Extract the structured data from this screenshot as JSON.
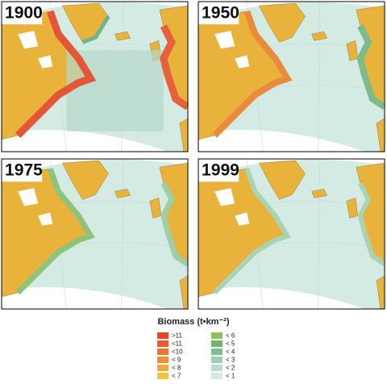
{
  "panels": [
    {
      "label": "1900"
    },
    {
      "label": "1950"
    },
    {
      "label": "1975"
    },
    {
      "label": "1999"
    }
  ],
  "legend": {
    "title": "Biomass (t•km⁻²)",
    "items": [
      {
        "label": ">11",
        "color": "#e8432c"
      },
      {
        "label": "<11",
        "color": "#ea5a30"
      },
      {
        "label": "<10",
        "color": "#ec7434"
      },
      {
        "label": "< 9",
        "color": "#ee8f38"
      },
      {
        "label": "< 8",
        "color": "#f0a93c"
      },
      {
        "label": "< 7",
        "color": "#f2c240"
      },
      {
        "label": "< 6",
        "color": "#8fbf5a"
      },
      {
        "label": "< 5",
        "color": "#72b46e"
      },
      {
        "label": "< 4",
        "color": "#7dbf92"
      },
      {
        "label": "< 3",
        "color": "#9dcfb2"
      },
      {
        "label": "< 2",
        "color": "#b8ddcc"
      },
      {
        "label": "< 1",
        "color": "#d3ebe3"
      }
    ]
  }
}
